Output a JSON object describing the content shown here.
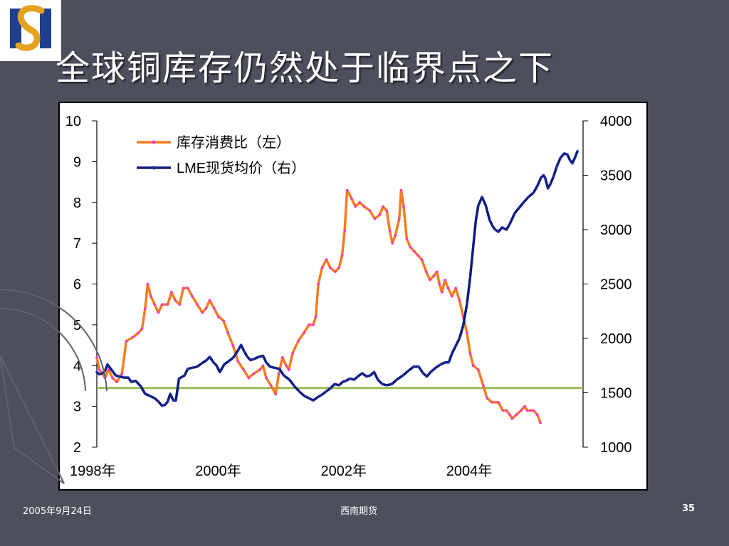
{
  "slide": {
    "title": "全球铜库存仍然处于临界点之下",
    "footer_date": "2005年9月24日",
    "footer_center": "西南期货",
    "page_number": "35"
  },
  "chart_data": {
    "type": "line",
    "x_tick_labels": [
      "1998年",
      "2000年",
      "2002年",
      "2004年"
    ],
    "x_range": [
      1998.0,
      2005.75
    ],
    "y_left": {
      "range": [
        2,
        10
      ],
      "ticks": [
        "2",
        "3",
        "4",
        "5",
        "6",
        "7",
        "8",
        "9",
        "10"
      ]
    },
    "y_right": {
      "range": [
        1000,
        4000
      ],
      "ticks": [
        "1000",
        "1500",
        "2000",
        "2500",
        "3000",
        "3500",
        "4000"
      ]
    },
    "grid": false,
    "legend_position": "top-left",
    "reference_line": {
      "axis": "left",
      "value": 3.45,
      "color": "#9bbb59"
    },
    "series": [
      {
        "name": "库存消费比（左）",
        "axis": "left",
        "color": "#f47c20",
        "points": [
          [
            1998.0,
            4.2
          ],
          [
            1998.04,
            3.9
          ],
          [
            1998.09,
            3.8
          ],
          [
            1998.13,
            3.7
          ],
          [
            1998.19,
            3.9
          ],
          [
            1998.25,
            3.7
          ],
          [
            1998.32,
            3.6
          ],
          [
            1998.4,
            3.8
          ],
          [
            1998.47,
            4.6
          ],
          [
            1998.58,
            4.7
          ],
          [
            1998.66,
            4.8
          ],
          [
            1998.72,
            4.9
          ],
          [
            1998.77,
            5.4
          ],
          [
            1998.81,
            6.0
          ],
          [
            1998.86,
            5.7
          ],
          [
            1998.92,
            5.5
          ],
          [
            1998.98,
            5.3
          ],
          [
            1999.04,
            5.5
          ],
          [
            1999.13,
            5.5
          ],
          [
            1999.19,
            5.8
          ],
          [
            1999.25,
            5.6
          ],
          [
            1999.32,
            5.5
          ],
          [
            1999.38,
            5.9
          ],
          [
            1999.45,
            5.9
          ],
          [
            1999.52,
            5.7
          ],
          [
            1999.6,
            5.5
          ],
          [
            1999.68,
            5.3
          ],
          [
            1999.74,
            5.4
          ],
          [
            1999.8,
            5.6
          ],
          [
            1999.87,
            5.4
          ],
          [
            1999.94,
            5.2
          ],
          [
            2000.02,
            5.1
          ],
          [
            2000.09,
            4.8
          ],
          [
            2000.17,
            4.5
          ],
          [
            2000.25,
            4.1
          ],
          [
            2000.34,
            3.9
          ],
          [
            2000.42,
            3.7
          ],
          [
            2000.5,
            3.8
          ],
          [
            2000.6,
            3.9
          ],
          [
            2000.65,
            4.0
          ],
          [
            2000.7,
            3.7
          ],
          [
            2000.78,
            3.5
          ],
          [
            2000.85,
            3.3
          ],
          [
            2000.9,
            3.8
          ],
          [
            2000.96,
            4.2
          ],
          [
            2001.02,
            4.0
          ],
          [
            2001.06,
            3.9
          ],
          [
            2001.12,
            4.3
          ],
          [
            2001.21,
            4.6
          ],
          [
            2001.3,
            4.8
          ],
          [
            2001.38,
            5.0
          ],
          [
            2001.45,
            5.0
          ],
          [
            2001.49,
            5.2
          ],
          [
            2001.53,
            6.0
          ],
          [
            2001.59,
            6.4
          ],
          [
            2001.66,
            6.6
          ],
          [
            2001.72,
            6.4
          ],
          [
            2001.8,
            6.3
          ],
          [
            2001.86,
            6.4
          ],
          [
            2001.91,
            6.7
          ],
          [
            2001.95,
            7.3
          ],
          [
            2001.99,
            8.3
          ],
          [
            2002.06,
            8.1
          ],
          [
            2002.12,
            7.9
          ],
          [
            2002.19,
            8.0
          ],
          [
            2002.26,
            7.9
          ],
          [
            2002.35,
            7.8
          ],
          [
            2002.43,
            7.6
          ],
          [
            2002.51,
            7.7
          ],
          [
            2002.56,
            7.9
          ],
          [
            2002.62,
            7.8
          ],
          [
            2002.67,
            7.3
          ],
          [
            2002.71,
            7.0
          ],
          [
            2002.76,
            7.2
          ],
          [
            2002.82,
            7.6
          ],
          [
            2002.85,
            8.3
          ],
          [
            2002.89,
            7.9
          ],
          [
            2002.94,
            7.1
          ],
          [
            2003.0,
            6.9
          ],
          [
            2003.06,
            6.8
          ],
          [
            2003.12,
            6.7
          ],
          [
            2003.18,
            6.6
          ],
          [
            2003.25,
            6.3
          ],
          [
            2003.31,
            6.1
          ],
          [
            2003.37,
            6.2
          ],
          [
            2003.42,
            6.3
          ],
          [
            2003.46,
            6.0
          ],
          [
            2003.5,
            5.8
          ],
          [
            2003.55,
            6.1
          ],
          [
            2003.6,
            5.9
          ],
          [
            2003.66,
            5.7
          ],
          [
            2003.72,
            5.9
          ],
          [
            2003.78,
            5.6
          ],
          [
            2003.84,
            5.2
          ],
          [
            2003.9,
            4.8
          ],
          [
            2003.95,
            4.3
          ],
          [
            2004.0,
            4.0
          ],
          [
            2004.08,
            3.9
          ],
          [
            2004.16,
            3.5
          ],
          [
            2004.22,
            3.2
          ],
          [
            2004.3,
            3.1
          ],
          [
            2004.4,
            3.1
          ],
          [
            2004.47,
            2.9
          ],
          [
            2004.53,
            2.9
          ],
          [
            2004.58,
            2.8
          ],
          [
            2004.62,
            2.7
          ],
          [
            2004.69,
            2.8
          ],
          [
            2004.76,
            2.9
          ],
          [
            2004.82,
            3.0
          ],
          [
            2004.86,
            2.9
          ],
          [
            2004.91,
            2.9
          ],
          [
            2004.96,
            2.9
          ],
          [
            2005.02,
            2.8
          ],
          [
            2005.07,
            2.6
          ]
        ]
      },
      {
        "name": "LME现货均价（右）",
        "axis": "right",
        "color": "#0d1b7a",
        "points": [
          [
            1998.0,
            1690
          ],
          [
            1998.04,
            1670
          ],
          [
            1998.09,
            1680
          ],
          [
            1998.13,
            1700
          ],
          [
            1998.17,
            1760
          ],
          [
            1998.21,
            1730
          ],
          [
            1998.25,
            1700
          ],
          [
            1998.3,
            1660
          ],
          [
            1998.36,
            1650
          ],
          [
            1998.43,
            1640
          ],
          [
            1998.5,
            1640
          ],
          [
            1998.55,
            1600
          ],
          [
            1998.62,
            1610
          ],
          [
            1998.7,
            1560
          ],
          [
            1998.77,
            1490
          ],
          [
            1998.85,
            1470
          ],
          [
            1998.92,
            1450
          ],
          [
            1998.98,
            1420
          ],
          [
            1999.04,
            1380
          ],
          [
            1999.09,
            1390
          ],
          [
            1999.13,
            1420
          ],
          [
            1999.17,
            1490
          ],
          [
            1999.22,
            1430
          ],
          [
            1999.26,
            1430
          ],
          [
            1999.31,
            1630
          ],
          [
            1999.4,
            1660
          ],
          [
            1999.45,
            1720
          ],
          [
            1999.52,
            1730
          ],
          [
            1999.6,
            1740
          ],
          [
            1999.67,
            1770
          ],
          [
            1999.75,
            1800
          ],
          [
            1999.8,
            1830
          ],
          [
            1999.86,
            1780
          ],
          [
            1999.91,
            1750
          ],
          [
            1999.96,
            1690
          ],
          [
            2000.03,
            1760
          ],
          [
            2000.1,
            1790
          ],
          [
            2000.17,
            1820
          ],
          [
            2000.22,
            1860
          ],
          [
            2000.26,
            1900
          ],
          [
            2000.3,
            1940
          ],
          [
            2000.35,
            1880
          ],
          [
            2000.4,
            1830
          ],
          [
            2000.45,
            1800
          ],
          [
            2000.5,
            1810
          ],
          [
            2000.58,
            1830
          ],
          [
            2000.65,
            1840
          ],
          [
            2000.7,
            1780
          ],
          [
            2000.76,
            1740
          ],
          [
            2000.83,
            1730
          ],
          [
            2000.91,
            1720
          ],
          [
            2000.98,
            1660
          ],
          [
            2001.07,
            1620
          ],
          [
            2001.15,
            1560
          ],
          [
            2001.23,
            1510
          ],
          [
            2001.31,
            1470
          ],
          [
            2001.38,
            1450
          ],
          [
            2001.45,
            1430
          ],
          [
            2001.52,
            1460
          ],
          [
            2001.58,
            1480
          ],
          [
            2001.65,
            1510
          ],
          [
            2001.72,
            1540
          ],
          [
            2001.79,
            1580
          ],
          [
            2001.86,
            1570
          ],
          [
            2001.92,
            1600
          ],
          [
            2001.97,
            1610
          ],
          [
            2002.03,
            1630
          ],
          [
            2002.1,
            1620
          ],
          [
            2002.16,
            1650
          ],
          [
            2002.23,
            1680
          ],
          [
            2002.3,
            1650
          ],
          [
            2002.36,
            1660
          ],
          [
            2002.42,
            1690
          ],
          [
            2002.48,
            1620
          ],
          [
            2002.55,
            1580
          ],
          [
            2002.62,
            1570
          ],
          [
            2002.7,
            1580
          ],
          [
            2002.78,
            1620
          ],
          [
            2002.88,
            1660
          ],
          [
            2002.96,
            1700
          ],
          [
            2003.05,
            1740
          ],
          [
            2003.13,
            1740
          ],
          [
            2003.2,
            1680
          ],
          [
            2003.26,
            1650
          ],
          [
            2003.32,
            1690
          ],
          [
            2003.4,
            1730
          ],
          [
            2003.48,
            1760
          ],
          [
            2003.55,
            1780
          ],
          [
            2003.61,
            1780
          ],
          [
            2003.66,
            1860
          ],
          [
            2003.72,
            1930
          ],
          [
            2003.78,
            2000
          ],
          [
            2003.84,
            2120
          ],
          [
            2003.9,
            2320
          ],
          [
            2003.95,
            2560
          ],
          [
            2004.0,
            2850
          ],
          [
            2004.04,
            3080
          ],
          [
            2004.08,
            3220
          ],
          [
            2004.14,
            3300
          ],
          [
            2004.2,
            3220
          ],
          [
            2004.26,
            3090
          ],
          [
            2004.31,
            3030
          ],
          [
            2004.35,
            3000
          ],
          [
            2004.4,
            2980
          ],
          [
            2004.46,
            3020
          ],
          [
            2004.53,
            3000
          ],
          [
            2004.58,
            3050
          ],
          [
            2004.66,
            3150
          ],
          [
            2004.73,
            3200
          ],
          [
            2004.8,
            3250
          ],
          [
            2004.88,
            3300
          ],
          [
            2004.96,
            3340
          ],
          [
            2005.02,
            3400
          ],
          [
            2005.08,
            3480
          ],
          [
            2005.12,
            3500
          ],
          [
            2005.15,
            3470
          ],
          [
            2005.19,
            3380
          ],
          [
            2005.23,
            3420
          ],
          [
            2005.28,
            3490
          ],
          [
            2005.33,
            3580
          ],
          [
            2005.39,
            3660
          ],
          [
            2005.45,
            3700
          ],
          [
            2005.5,
            3690
          ],
          [
            2005.54,
            3640
          ],
          [
            2005.58,
            3610
          ],
          [
            2005.62,
            3660
          ],
          [
            2005.66,
            3720
          ]
        ]
      }
    ]
  }
}
